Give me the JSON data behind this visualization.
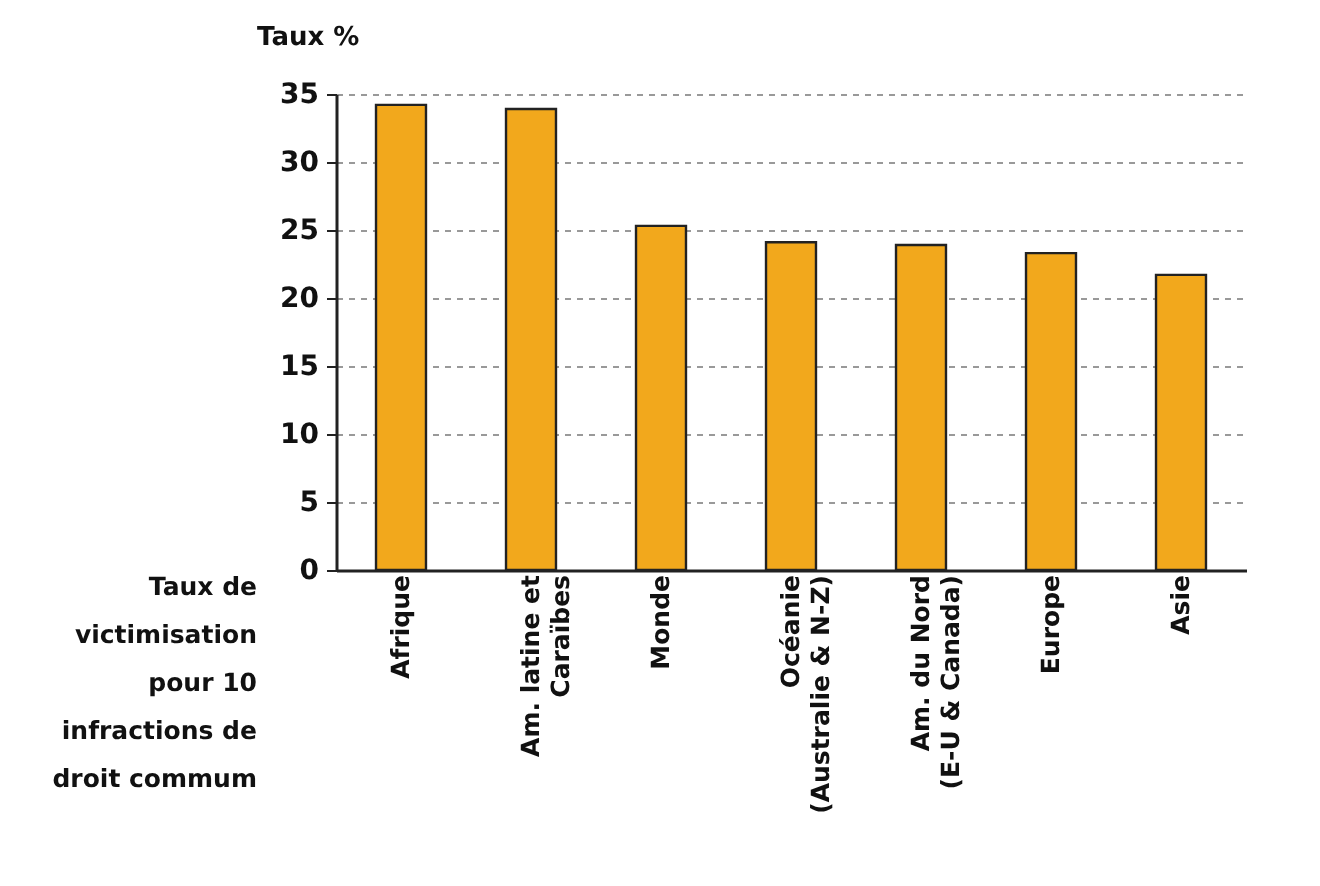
{
  "chart_data": {
    "type": "bar",
    "ylabel": "Taux %",
    "xlabel": "Taux de\nvictimisation\npour 10\ninfractions de\ndroit commum",
    "categories": [
      "Afrique",
      "Am. latine et\nCaraïbes",
      "Monde",
      "Océanie\n(Australie & N-Z)",
      "Am. du Nord\n(E-U & Canada)",
      "Europe",
      "Asie"
    ],
    "values": [
      34.2,
      33.9,
      25.3,
      24.1,
      23.9,
      23.3,
      21.7
    ],
    "color": "#f2a81c",
    "ylim": [
      0,
      35
    ],
    "yticks": [
      0,
      5,
      10,
      15,
      20,
      25,
      30,
      35
    ],
    "grid": "y"
  }
}
